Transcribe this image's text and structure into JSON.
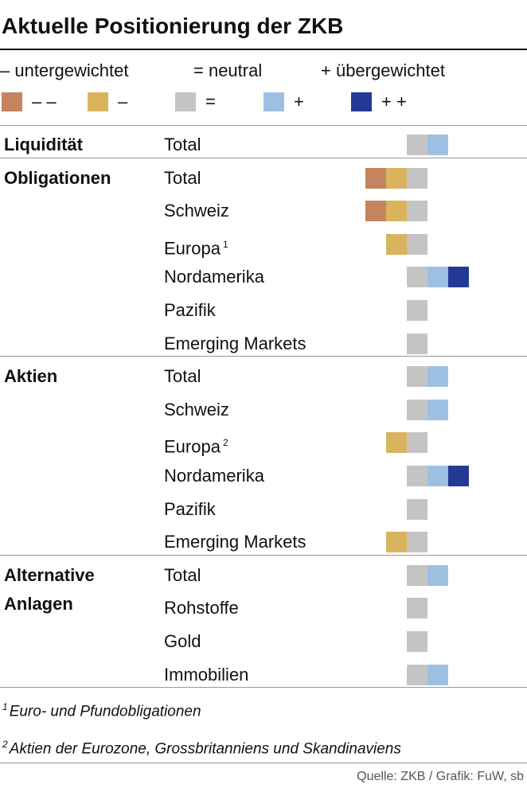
{
  "chart_data": {
    "type": "positioning",
    "title": "Aktuelle Positionierung der ZKB",
    "legend": [
      "– untergewichtet",
      "= neutral",
      "+ übergewichtet"
    ],
    "levels": [
      {
        "value": -2,
        "label": "– –",
        "color": "#c4845f"
      },
      {
        "value": -1,
        "label": "–",
        "color": "#d9b35e"
      },
      {
        "value": 0,
        "label": "=",
        "color": "#c4c4c4"
      },
      {
        "value": 1,
        "label": "+",
        "color": "#9dc0e2"
      },
      {
        "value": 2,
        "label": "+ +",
        "color": "#223a93"
      }
    ],
    "groups": [
      {
        "name": "Liquidität",
        "rows": [
          {
            "label": "Total",
            "value": 1
          }
        ]
      },
      {
        "name": "Obligationen",
        "rows": [
          {
            "label": "Total",
            "value": -2
          },
          {
            "label": "Schweiz",
            "value": -2
          },
          {
            "label": "Europa",
            "note": "1",
            "value": -1
          },
          {
            "label": "Nordamerika",
            "value": 2
          },
          {
            "label": "Pazifik",
            "value": 0
          },
          {
            "label": "Emerging Markets",
            "value": 0
          }
        ]
      },
      {
        "name": "Aktien",
        "rows": [
          {
            "label": "Total",
            "value": 1
          },
          {
            "label": "Schweiz",
            "value": 1
          },
          {
            "label": "Europa",
            "note": "2",
            "value": -1
          },
          {
            "label": "Nordamerika",
            "value": 2
          },
          {
            "label": "Pazifik",
            "value": 0
          },
          {
            "label": "Emerging Markets",
            "value": -1
          }
        ]
      },
      {
        "name": "Alternative Anlagen",
        "rows": [
          {
            "label": "Total",
            "value": 1
          },
          {
            "label": "Rohstoffe",
            "value": 0
          },
          {
            "label": "Gold",
            "value": 0
          },
          {
            "label": "Immobilien",
            "value": 1
          }
        ]
      }
    ],
    "notes": [
      {
        "mark": "1",
        "text": "Euro- und Pfundobligationen"
      },
      {
        "mark": "2",
        "text": "Aktien der Eurozone, Grossbritanniens und Skandinaviens"
      }
    ],
    "source": "Quelle: ZKB / Grafik: FuW, sb"
  }
}
